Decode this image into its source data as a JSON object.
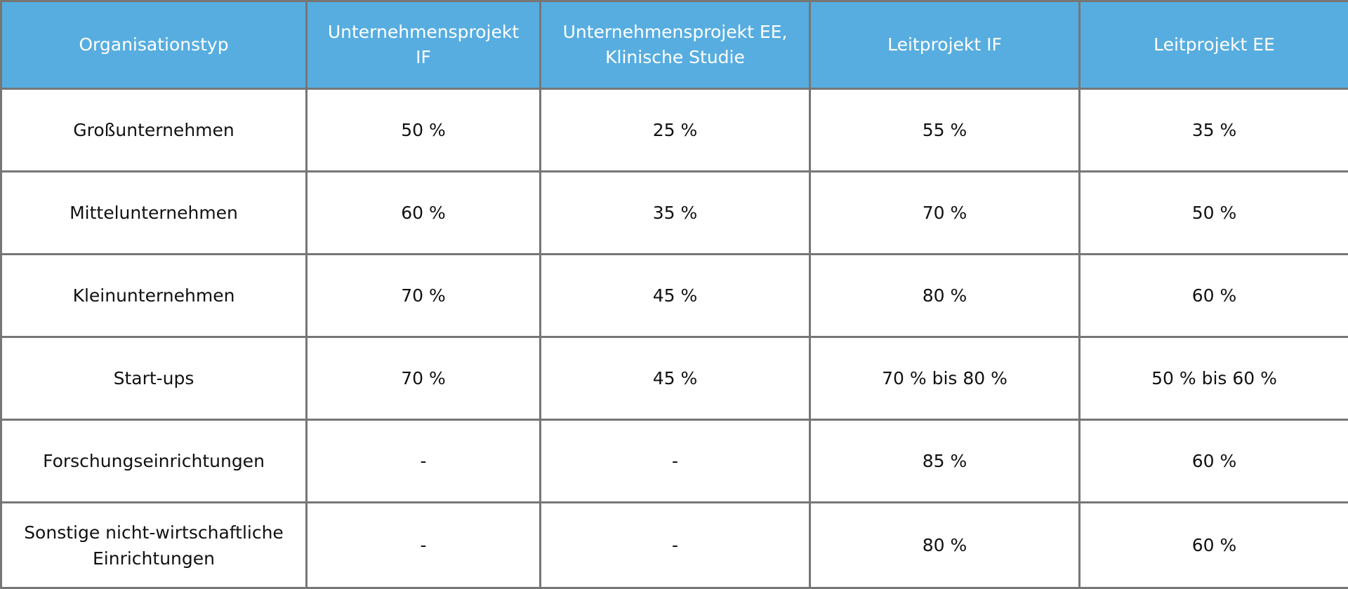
{
  "table": {
    "headers": [
      "Organisationstyp",
      "Unternehmensprojekt IF",
      "Unternehmensprojekt EE, Klinische Studie",
      "Leitprojekt IF",
      "Leitprojekt EE"
    ],
    "rows": [
      [
        "Großunternehmen",
        "50 %",
        "25 %",
        "55 %",
        "35 %"
      ],
      [
        "Mittelunternehmen",
        "60 %",
        "35 %",
        "70 %",
        "50 %"
      ],
      [
        "Kleinunternehmen",
        "70 %",
        "45 %",
        "80 %",
        "60 %"
      ],
      [
        "Start-ups",
        "70 %",
        "45 %",
        "70 % bis 80 %",
        "50 % bis 60 %"
      ],
      [
        "Forschungseinrichtungen",
        "-",
        "-",
        "85 %",
        "60 %"
      ],
      [
        "Sonstige nicht-wirtschaftliche Einrichtungen",
        "-",
        "-",
        "80 %",
        "60 %"
      ]
    ]
  },
  "colors": {
    "header_background": "#57ade0",
    "header_text": "#ffffff",
    "border": "#767676"
  }
}
